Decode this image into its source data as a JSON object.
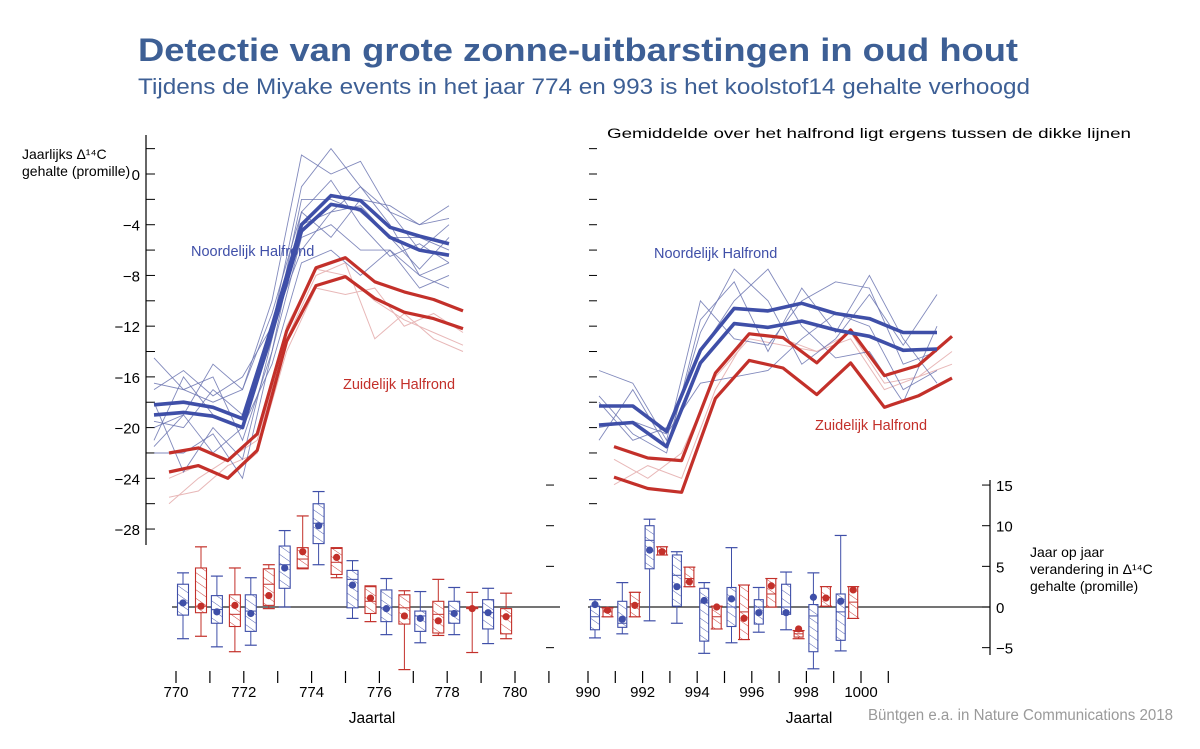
{
  "title": "Detectie van grote zonne-uitbarstingen in oud hout",
  "subtitle": "Tijdens de Miyake events in het jaar 774 en 993 is het koolstof14 gehalte verhoogd",
  "credit": "Büntgen e.a. in Nature Communications 2018",
  "colors": {
    "title": "#3d5f95",
    "north": "#3f4fa8",
    "south": "#c3302a",
    "north_thin": "#6b74b0",
    "south_thin": "#e8b8b8",
    "axis": "#000000",
    "credit": "#9a9a9a"
  },
  "chart_data": [
    {
      "type": "line",
      "panel": "left-top",
      "ylabel": [
        "Jaarlijks Δ¹⁴C",
        "gehalte (promille)"
      ],
      "yticks": [
        "0",
        "−4",
        "−8",
        "−12",
        "−16",
        "−20",
        "−24",
        "−28"
      ],
      "ytick_values": [
        0,
        -4,
        -8,
        -12,
        -16,
        -20,
        -24,
        -28
      ],
      "ylim": [
        -30,
        2
      ],
      "x": [
        770,
        771,
        772,
        773,
        774,
        775,
        776,
        777,
        778,
        779,
        780
      ],
      "labels": {
        "north": "Noordelijk Halfrond",
        "south": "Zuidelijk Halfrond"
      },
      "north_bounds": [
        [
          -18.2,
          -18.0,
          -18.4,
          -19.3,
          -12.0,
          -4.0,
          -1.7,
          -2.1,
          -4.2,
          -4.9,
          -5.5
        ],
        [
          -19.0,
          -18.8,
          -19.1,
          -20.0,
          -12.5,
          -4.5,
          -2.4,
          -2.8,
          -5.0,
          -6.0,
          -6.4
        ]
      ],
      "south_bounds": [
        [
          -22.0,
          -21.6,
          -22.6,
          -20.5,
          -12.4,
          -7.4,
          -6.6,
          -8.5,
          -9.3,
          -9.9,
          -10.8
        ],
        [
          -23.5,
          -23.0,
          -24.0,
          -21.8,
          -13.2,
          -8.8,
          -8.1,
          -9.8,
          -10.9,
          -11.4,
          -12.2
        ]
      ],
      "north_records": [
        [
          -17,
          -15.5,
          -17.5,
          -16,
          -12,
          -1,
          2,
          -1,
          -3,
          -6,
          -4
        ],
        [
          -21,
          -16,
          -19,
          -20,
          -13,
          -4,
          -3,
          -1,
          -4,
          -8,
          -9
        ],
        [
          -14.5,
          -17,
          -18,
          -17,
          -10,
          1.5,
          0,
          1,
          -3,
          -4,
          -2.5
        ],
        [
          -20,
          -19,
          -15,
          -17,
          -11,
          -3,
          -0.5,
          -4,
          -6.5,
          -5.5,
          -7
        ],
        [
          -22,
          -22,
          -20.5,
          -24,
          -14,
          -5,
          -4,
          -6,
          -6,
          -8,
          -7
        ],
        [
          -19.5,
          -20,
          -17,
          -19,
          -12,
          -6,
          -3,
          -2.5,
          -5,
          -5,
          -6
        ],
        [
          -18,
          -23.5,
          -20,
          -22.5,
          -13,
          -2,
          -2,
          -3,
          -5,
          -7.5,
          -5
        ],
        [
          -16.5,
          -17,
          -16,
          -21,
          -14,
          -3,
          -5,
          -2,
          -2.5,
          -4,
          -3.5
        ],
        [
          -21.5,
          -19,
          -22,
          -20,
          -15,
          -7,
          -6,
          -8,
          -6,
          -9,
          -8
        ]
      ],
      "south_records": [
        [
          -25.5,
          -25,
          -23,
          -22,
          -14,
          -9,
          -9.5,
          -9,
          -12,
          -11,
          -12.5
        ],
        [
          -26,
          -24,
          -22.5,
          -21,
          -13,
          -8,
          -7,
          -13,
          -11,
          -13,
          -14
        ],
        [
          -24,
          -23,
          -24,
          -22,
          -12,
          -7.5,
          -8,
          -10,
          -11.5,
          -12.5,
          -13.5
        ]
      ]
    },
    {
      "type": "line",
      "panel": "right-top",
      "annotation": "Gemiddelde over het halfrond ligt ergens tussen de dikke lijnen",
      "x": [
        990,
        991,
        992,
        993,
        994,
        995,
        996,
        997,
        998,
        999,
        1000
      ],
      "labels": {
        "north": "Noordelijk Halfrond",
        "south": "Zuidelijk Halfrond"
      },
      "north_bounds": [
        [
          -18.3,
          -18.3,
          -20.3,
          -13.9,
          -10.6,
          -10.8,
          -10.2,
          -11.0,
          -11.4,
          -12.5,
          -12.5
        ],
        [
          -19.8,
          -19.6,
          -21.5,
          -14.9,
          -11.8,
          -12.1,
          -11.6,
          -12.3,
          -12.8,
          -13.9,
          -13.8
        ]
      ],
      "south_bounds": [
        [
          -21.5,
          -22.4,
          -22.6,
          -15.7,
          -12.6,
          -12.9,
          -14.9,
          -12.3,
          -15.9,
          -15.1,
          -12.8
        ],
        [
          -23.9,
          -24.8,
          -25.1,
          -17.7,
          -14.7,
          -15.3,
          -17.4,
          -14.9,
          -18.4,
          -17.5,
          -16.1
        ]
      ],
      "north_records": [
        [
          -17.5,
          -20.5,
          -22,
          -11.5,
          -8.5,
          -14,
          -9,
          -12.5,
          -8,
          -13,
          -16.5
        ],
        [
          -15.5,
          -16.5,
          -21,
          -10,
          -13,
          -13.5,
          -10,
          -8.5,
          -9,
          -15,
          -14
        ],
        [
          -21,
          -17,
          -21.5,
          -12.5,
          -7.5,
          -10,
          -15,
          -13,
          -9.5,
          -13.5,
          -9.5
        ],
        [
          -18,
          -21,
          -20,
          -14,
          -10,
          -7.5,
          -12,
          -14.5,
          -14,
          -18,
          -12
        ],
        [
          -20,
          -19.5,
          -20.5,
          -16.5,
          -16,
          -15.5,
          -13,
          -11,
          -12,
          -17,
          -15.5
        ]
      ],
      "south_records": [
        [
          -24.5,
          -23,
          -24,
          -17,
          -12.5,
          -13,
          -14,
          -13,
          -17,
          -16,
          -14
        ],
        [
          -22.5,
          -24,
          -22,
          -16,
          -13,
          -13.5,
          -14,
          -12.5,
          -16.5,
          -16,
          -15
        ]
      ]
    },
    {
      "type": "box",
      "panel": "left-bottom",
      "xlabel": "Jaartal",
      "xticks": [
        "770",
        "772",
        "774",
        "776",
        "778",
        "780"
      ],
      "xlim": [
        770,
        781
      ],
      "ylim": [
        -8,
        15
      ],
      "boxes": [
        {
          "year": 770,
          "hemisphere": "north",
          "whisker_low": -3.9,
          "q1": -1.0,
          "median": 0.5,
          "q3": 2.8,
          "whisker_high": 4.2,
          "mean": 0.5
        },
        {
          "year": 770,
          "hemisphere": "south",
          "whisker_low": -3.6,
          "q1": -0.7,
          "median": 0.1,
          "q3": 4.8,
          "whisker_high": 7.4,
          "mean": 0.1
        },
        {
          "year": 771,
          "hemisphere": "north",
          "whisker_low": -4.9,
          "q1": -2.0,
          "median": -0.3,
          "q3": 1.4,
          "whisker_high": 3.8,
          "mean": -0.6
        },
        {
          "year": 771,
          "hemisphere": "south",
          "whisker_low": -5.5,
          "q1": -2.4,
          "median": -0.9,
          "q3": 1.5,
          "whisker_high": 4.8,
          "mean": 0.2
        },
        {
          "year": 772,
          "hemisphere": "north",
          "whisker_low": -4.7,
          "q1": -3.0,
          "median": -0.5,
          "q3": 1.5,
          "whisker_high": 3.6,
          "mean": -0.8
        },
        {
          "year": 772,
          "hemisphere": "south",
          "whisker_low": -0.2,
          "q1": 0.2,
          "median": 2.8,
          "q3": 4.7,
          "whisker_high": 5.2,
          "mean": 1.4
        },
        {
          "year": 773,
          "hemisphere": "north",
          "whisker_low": 0.0,
          "q1": 2.3,
          "median": 5.2,
          "q3": 7.5,
          "whisker_high": 9.4,
          "mean": 4.8
        },
        {
          "year": 773,
          "hemisphere": "south",
          "whisker_low": 4.7,
          "q1": 4.8,
          "median": 5.9,
          "q3": 7.3,
          "whisker_high": 11.2,
          "mean": 6.8
        },
        {
          "year": 774,
          "hemisphere": "north",
          "whisker_low": 5.2,
          "q1": 7.8,
          "median": 10.3,
          "q3": 12.7,
          "whisker_high": 14.2,
          "mean": 10.0
        },
        {
          "year": 774,
          "hemisphere": "south",
          "whisker_low": 3.6,
          "q1": 4.0,
          "median": 5.5,
          "q3": 7.2,
          "whisker_high": 7.3,
          "mean": 6.1
        },
        {
          "year": 775,
          "hemisphere": "north",
          "whisker_low": -1.4,
          "q1": -0.1,
          "median": 3.4,
          "q3": 4.5,
          "whisker_high": 5.7,
          "mean": 2.7
        },
        {
          "year": 775,
          "hemisphere": "south",
          "whisker_low": -1.8,
          "q1": -0.8,
          "median": 0.7,
          "q3": 2.5,
          "whisker_high": 2.6,
          "mean": 1.1
        },
        {
          "year": 776,
          "hemisphere": "north",
          "whisker_low": -3.4,
          "q1": -1.8,
          "median": -0.1,
          "q3": 2.1,
          "whisker_high": 3.5,
          "mean": -0.2
        },
        {
          "year": 776,
          "hemisphere": "south",
          "whisker_low": -7.7,
          "q1": -2.1,
          "median": -0.1,
          "q3": 1.5,
          "whisker_high": 2.0,
          "mean": -1.1
        },
        {
          "year": 777,
          "hemisphere": "north",
          "whisker_low": -4.4,
          "q1": -3.0,
          "median": -1.1,
          "q3": -0.5,
          "whisker_high": 1.9,
          "mean": -1.4
        },
        {
          "year": 777,
          "hemisphere": "south",
          "whisker_low": -3.5,
          "q1": -3.2,
          "median": -0.9,
          "q3": 0.7,
          "whisker_high": 3.4,
          "mean": -1.7
        },
        {
          "year": 778,
          "hemisphere": "north",
          "whisker_low": -3.4,
          "q1": -2.0,
          "median": -0.5,
          "q3": 0.7,
          "whisker_high": 2.4,
          "mean": -0.8
        },
        {
          "year": 778,
          "hemisphere": "south",
          "whisker_low": -5.6,
          "q1": -0.2,
          "median": -0.1,
          "q3": 0.0,
          "whisker_high": 1.8,
          "mean": -0.2
        },
        {
          "year": 779,
          "hemisphere": "north",
          "whisker_low": -4.5,
          "q1": -2.7,
          "median": -0.7,
          "q3": 0.9,
          "whisker_high": 2.3,
          "mean": -0.7
        },
        {
          "year": 779,
          "hemisphere": "south",
          "whisker_low": -3.9,
          "q1": -3.3,
          "median": -1.1,
          "q3": -0.2,
          "whisker_high": 1.7,
          "mean": -1.2
        }
      ]
    },
    {
      "type": "box",
      "panel": "right-bottom",
      "xlabel": "Jaartal",
      "xticks": [
        "990",
        "992",
        "994",
        "996",
        "998",
        "1000"
      ],
      "xlim": [
        990,
        1001
      ],
      "ylabel": [
        "Jaar op jaar",
        "verandering in Δ¹⁴C",
        "gehalte (promille)"
      ],
      "yticks": [
        "15",
        "10",
        "5",
        "0",
        "−5"
      ],
      "ytick_values": [
        15,
        10,
        5,
        0,
        -5
      ],
      "ylim": [
        -8,
        15
      ],
      "boxes": [
        {
          "year": 990,
          "hemisphere": "north",
          "whisker_low": -3.8,
          "q1": -2.8,
          "median": -1.2,
          "q3": 0.1,
          "whisker_high": 0.9,
          "mean": 0.3
        },
        {
          "year": 990,
          "hemisphere": "south",
          "whisker_low": -1.2,
          "q1": -1.2,
          "median": -0.6,
          "q3": -0.1,
          "whisker_high": -0.1,
          "mean": -0.4
        },
        {
          "year": 991,
          "hemisphere": "north",
          "whisker_low": -3.3,
          "q1": -2.5,
          "median": -2.0,
          "q3": 0.7,
          "whisker_high": 3.0,
          "mean": -1.5
        },
        {
          "year": 991,
          "hemisphere": "south",
          "whisker_low": -1.2,
          "q1": -1.2,
          "median": 0.4,
          "q3": 1.8,
          "whisker_high": 1.8,
          "mean": 0.2
        },
        {
          "year": 992,
          "hemisphere": "north",
          "whisker_low": -1.7,
          "q1": 4.7,
          "median": 8.2,
          "q3": 10.0,
          "whisker_high": 10.8,
          "mean": 7.0
        },
        {
          "year": 992,
          "hemisphere": "south",
          "whisker_low": 6.4,
          "q1": 6.4,
          "median": 6.9,
          "q3": 7.4,
          "whisker_high": 7.4,
          "mean": 6.8
        },
        {
          "year": 993,
          "hemisphere": "north",
          "whisker_low": -2.0,
          "q1": 0.1,
          "median": 3.9,
          "q3": 6.4,
          "whisker_high": 6.8,
          "mean": 2.5
        },
        {
          "year": 993,
          "hemisphere": "south",
          "whisker_low": 2.5,
          "q1": 2.5,
          "median": 3.5,
          "q3": 4.9,
          "whisker_high": 4.9,
          "mean": 3.1
        },
        {
          "year": 994,
          "hemisphere": "north",
          "whisker_low": -5.7,
          "q1": -4.2,
          "median": 0.5,
          "q3": 2.3,
          "whisker_high": 3.0,
          "mean": 0.8
        },
        {
          "year": 994,
          "hemisphere": "south",
          "whisker_low": -2.7,
          "q1": -2.7,
          "median": -1.2,
          "q3": 0.1,
          "whisker_high": 0.1,
          "mean": 0.0
        },
        {
          "year": 995,
          "hemisphere": "north",
          "whisker_low": -4.4,
          "q1": -2.4,
          "median": 0.0,
          "q3": 2.4,
          "whisker_high": 7.3,
          "mean": 1.0
        },
        {
          "year": 995,
          "hemisphere": "south",
          "whisker_low": -4.0,
          "q1": -4.0,
          "median": -0.6,
          "q3": 2.7,
          "whisker_high": 2.7,
          "mean": -1.4
        },
        {
          "year": 996,
          "hemisphere": "north",
          "whisker_low": -3.1,
          "q1": -2.1,
          "median": 0.0,
          "q3": 0.9,
          "whisker_high": 2.4,
          "mean": -0.7
        },
        {
          "year": 996,
          "hemisphere": "south",
          "whisker_low": 0.0,
          "q1": 0.0,
          "median": 1.6,
          "q3": 3.5,
          "whisker_high": 3.5,
          "mean": 2.6
        },
        {
          "year": 997,
          "hemisphere": "north",
          "whisker_low": -2.8,
          "q1": -0.9,
          "median": 0.0,
          "q3": 2.8,
          "whisker_high": 4.3,
          "mean": -0.7
        },
        {
          "year": 997,
          "hemisphere": "south",
          "whisker_low": -3.9,
          "q1": -3.7,
          "median": -3.3,
          "q3": -3.0,
          "whisker_high": -2.9,
          "mean": -2.7
        },
        {
          "year": 998,
          "hemisphere": "north",
          "whisker_low": -7.6,
          "q1": -5.5,
          "median": -1.1,
          "q3": 0.3,
          "whisker_high": 4.2,
          "mean": 1.2
        },
        {
          "year": 998,
          "hemisphere": "south",
          "whisker_low": 0.1,
          "q1": 0.1,
          "median": 1.2,
          "q3": 2.5,
          "whisker_high": 2.5,
          "mean": 1.1
        },
        {
          "year": 999,
          "hemisphere": "north",
          "whisker_low": -5.4,
          "q1": -4.1,
          "median": -0.6,
          "q3": 1.6,
          "whisker_high": 8.8,
          "mean": 0.7
        },
        {
          "year": 999,
          "hemisphere": "south",
          "whisker_low": -1.4,
          "q1": -1.4,
          "median": 0.6,
          "q3": 2.5,
          "whisker_high": 2.5,
          "mean": 2.1
        }
      ]
    }
  ]
}
